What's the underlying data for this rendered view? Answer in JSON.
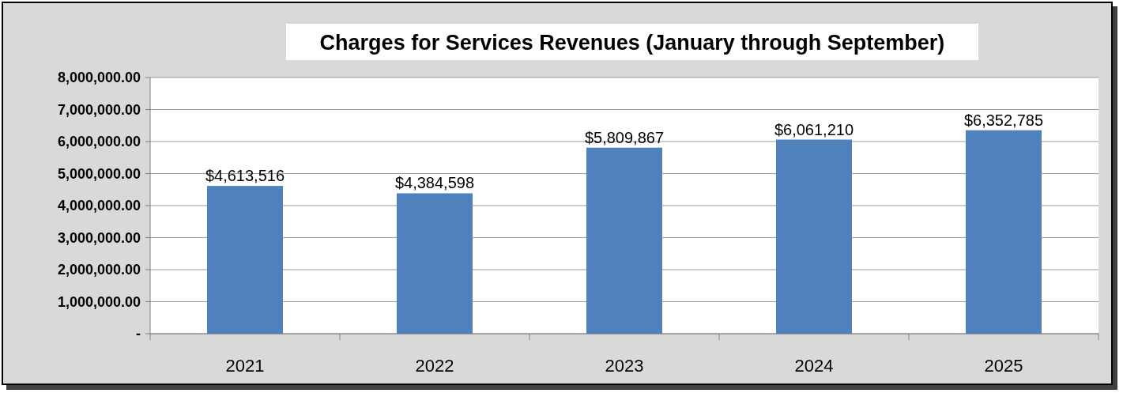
{
  "chart_data": {
    "type": "bar",
    "title": "Charges for Services Revenues (January through September)",
    "categories": [
      "2021",
      "2022",
      "2023",
      "2024",
      "2025"
    ],
    "values": [
      4613516,
      4384598,
      5809867,
      6061210,
      6352785
    ],
    "value_labels": [
      "$4,613,516",
      "$4,384,598",
      "$5,809,867",
      "$6,061,210",
      "$6,352,785"
    ],
    "color": "#4f81bd",
    "ylim": [
      0,
      8000000
    ],
    "yticks": [
      {
        "value": 0,
        "label": "-"
      },
      {
        "value": 1000000,
        "label": "1,000,000.00"
      },
      {
        "value": 2000000,
        "label": "2,000,000.00"
      },
      {
        "value": 3000000,
        "label": "3,000,000.00"
      },
      {
        "value": 4000000,
        "label": "4,000,000.00"
      },
      {
        "value": 5000000,
        "label": "5,000,000.00"
      },
      {
        "value": 6000000,
        "label": "6,000,000.00"
      },
      {
        "value": 7000000,
        "label": "7,000,000.00"
      },
      {
        "value": 8000000,
        "label": "8,000,000.00"
      }
    ],
    "grid": "y"
  }
}
